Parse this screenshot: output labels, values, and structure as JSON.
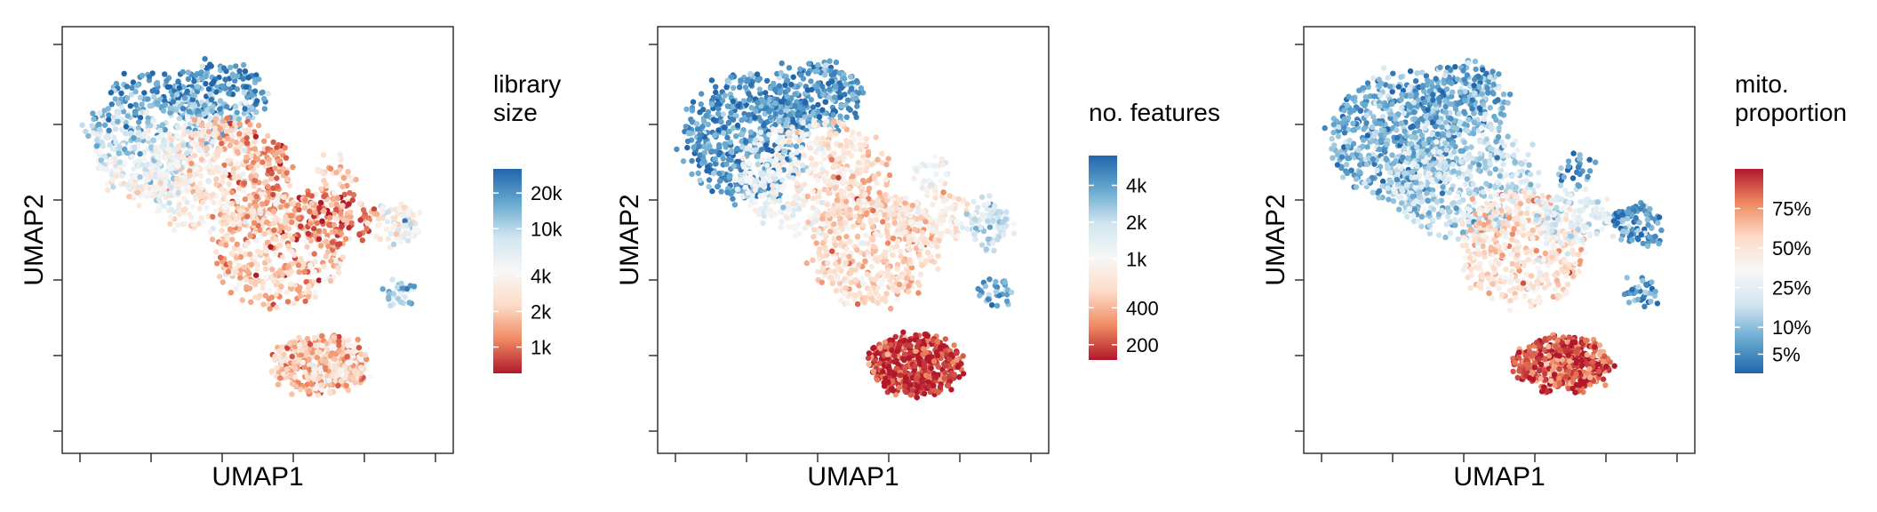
{
  "chart_data": [
    {
      "type": "scatter",
      "xlabel": "UMAP1",
      "ylabel": "UMAP2",
      "legend": {
        "title_lines": [
          "library",
          "size"
        ],
        "scale": "log",
        "range": [
          600,
          32000
        ],
        "ticks": [
          {
            "value": 20000,
            "label": "20k"
          },
          {
            "value": 10000,
            "label": "10k"
          },
          {
            "value": 4000,
            "label": "4k"
          },
          {
            "value": 2000,
            "label": "2k"
          },
          {
            "value": 1000,
            "label": "1k"
          }
        ],
        "colors": [
          "#b2182b",
          "#ef8a62",
          "#fddbc7",
          "#f7f7f7",
          "#d1e5f0",
          "#67a9cf",
          "#2166ac"
        ],
        "placement": "right"
      },
      "point_color_trend": "high (blue) in upper-left clusters, low (red) in central and lower-right clusters"
    },
    {
      "type": "scatter",
      "xlabel": "UMAP1",
      "ylabel": "UMAP2",
      "legend": {
        "title_lines": [
          "no. features"
        ],
        "scale": "log",
        "range": [
          150,
          7000
        ],
        "ticks": [
          {
            "value": 4000,
            "label": "4k"
          },
          {
            "value": 2000,
            "label": "2k"
          },
          {
            "value": 1000,
            "label": "1k"
          },
          {
            "value": 400,
            "label": "400"
          },
          {
            "value": 200,
            "label": "200"
          }
        ],
        "colors": [
          "#b2182b",
          "#ef8a62",
          "#fddbc7",
          "#f7f7f7",
          "#d1e5f0",
          "#67a9cf",
          "#2166ac"
        ],
        "placement": "right"
      },
      "point_color_trend": "high (blue) in upper-left clusters, very low (dark red) in the lower-right cluster"
    },
    {
      "type": "scatter",
      "xlabel": "UMAP1",
      "ylabel": "UMAP2",
      "legend": {
        "title_lines": [
          "mito.",
          "proportion"
        ],
        "scale": "logit",
        "range": [
          0.03,
          0.9
        ],
        "ticks": [
          {
            "value": 0.75,
            "label": "75%"
          },
          {
            "value": 0.5,
            "label": "50%"
          },
          {
            "value": 0.25,
            "label": "25%"
          },
          {
            "value": 0.1,
            "label": "10%"
          },
          {
            "value": 0.05,
            "label": "5%"
          }
        ],
        "colors": [
          "#2166ac",
          "#67a9cf",
          "#d1e5f0",
          "#f7f7f7",
          "#fddbc7",
          "#ef8a62",
          "#b2182b"
        ],
        "placement": "right"
      },
      "point_color_trend": "low (blue) in upper clusters and right islands, high (dark red) in the lower-right cluster"
    }
  ]
}
